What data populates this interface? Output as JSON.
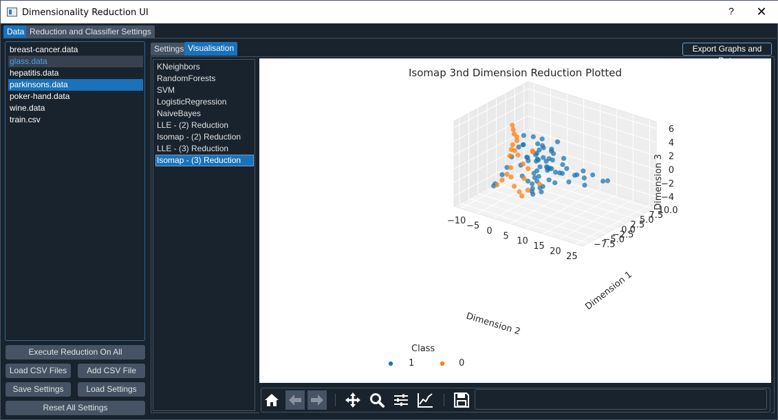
{
  "window": {
    "title": "Dimensionality Reduction UI",
    "help": "?",
    "close": "✕"
  },
  "main_tabs": [
    {
      "label": "Data",
      "active": true
    },
    {
      "label": "Reduction and Classifier Settings",
      "active": false
    }
  ],
  "files": [
    {
      "label": "breast-cancer.data",
      "state": "normal"
    },
    {
      "label": "glass.data",
      "state": "hover"
    },
    {
      "label": "hepatitis.data",
      "state": "normal"
    },
    {
      "label": "parkinsons.data",
      "state": "selected"
    },
    {
      "label": "poker-hand.data",
      "state": "normal"
    },
    {
      "label": "wine.data",
      "state": "normal"
    },
    {
      "label": "train.csv",
      "state": "normal"
    }
  ],
  "buttons": {
    "execute": "Execute Reduction On All",
    "load_csv": "Load CSV Files",
    "add_csv": "Add CSV File",
    "save_settings": "Save Settings",
    "load_settings": "Load Settings",
    "reset": "Reset All Settings"
  },
  "inner_tabs": [
    {
      "label": "Settings",
      "active": false
    },
    {
      "label": "Visualisation",
      "active": true
    }
  ],
  "export_label": "Export Graphs and Data",
  "methods": [
    {
      "label": "KNeighbors",
      "selected": false
    },
    {
      "label": "RandomForests",
      "selected": false
    },
    {
      "label": "SVM",
      "selected": false
    },
    {
      "label": "LogisticRegression",
      "selected": false
    },
    {
      "label": "NaiveBayes",
      "selected": false
    },
    {
      "label": "LLE - (2) Reduction",
      "selected": false
    },
    {
      "label": "Isomap - (2) Reduction",
      "selected": false
    },
    {
      "label": "LLE - (3) Reduction",
      "selected": false
    },
    {
      "label": "Isomap - (3) Reduction",
      "selected": true
    }
  ],
  "toolbar": {
    "icons": [
      "home-icon",
      "back-arrow-icon",
      "forward-arrow-icon",
      "pan-icon",
      "zoom-icon",
      "subplots-icon",
      "axes-edit-icon",
      "save-icon"
    ]
  },
  "chart_data": {
    "type": "scatter",
    "projection": "3d",
    "title": "Isomap 3nd Dimension Reduction Plotted",
    "xlabel": "Dimension 2",
    "ylabel": "Dimension 1",
    "zlabel": "Dimension 3",
    "x_ticks": [
      "−10",
      "−5",
      "0",
      "5",
      "10",
      "15",
      "20",
      "25"
    ],
    "y_ticks": [
      "−7.5",
      "−5.0",
      "−2.5",
      "0.0",
      "2.5",
      "5.0",
      "7.5",
      "10.0"
    ],
    "z_ticks": [
      "6",
      "4",
      "2",
      "0",
      "−2",
      "−4"
    ],
    "x_range": [
      -12,
      27
    ],
    "y_range": [
      -9,
      11
    ],
    "z_range": [
      -5.5,
      7
    ],
    "legend": {
      "title": "Class",
      "placement": "bottom-left",
      "entries": [
        {
          "name": "1",
          "color": "#1f77b4"
        },
        {
          "name": "0",
          "color": "#ff7f0e"
        }
      ]
    },
    "series": [
      {
        "name": "1",
        "color": "#1f77b4",
        "points": [
          [
            2,
            1,
            1.5
          ],
          [
            3,
            0.5,
            0.8
          ],
          [
            1,
            2,
            0.2
          ],
          [
            4,
            -1,
            1.2
          ],
          [
            5,
            1.5,
            -0.5
          ],
          [
            0,
            0,
            0.9
          ],
          [
            2.5,
            -2,
            1.8
          ],
          [
            6,
            0,
            0.4
          ],
          [
            3.5,
            2.5,
            -1.2
          ],
          [
            1.5,
            -1,
            -2.1
          ],
          [
            7,
            1,
            2.2
          ],
          [
            8,
            -1.5,
            1.0
          ],
          [
            4.5,
            3,
            0.3
          ],
          [
            2,
            -3,
            -0.7
          ],
          [
            9,
            2,
            1.5
          ],
          [
            10,
            0,
            0.1
          ],
          [
            5.5,
            -2.5,
            2.8
          ],
          [
            0.5,
            1.5,
            -1.8
          ],
          [
            3,
            4,
            1.1
          ],
          [
            6.5,
            2,
            -0.9
          ],
          [
            11,
            1,
            0.6
          ],
          [
            12,
            -1,
            1.9
          ],
          [
            14,
            0.5,
            0.2
          ],
          [
            16,
            1,
            1.0
          ],
          [
            18,
            -0.5,
            0.7
          ],
          [
            20,
            0,
            1.3
          ],
          [
            22,
            1,
            0.4
          ],
          [
            24,
            0.5,
            0.9
          ],
          [
            13,
            2,
            -0.3
          ],
          [
            15,
            -2,
            0.1
          ],
          [
            17,
            0.5,
            -0.8
          ],
          [
            4,
            0,
            -3.0
          ],
          [
            2,
            1,
            -2.6
          ],
          [
            3,
            -1,
            -3.8
          ],
          [
            1,
            0.5,
            -4.1
          ],
          [
            5,
            -0.5,
            -3.3
          ],
          [
            -2,
            1,
            3.5
          ],
          [
            -1,
            0,
            2.6
          ],
          [
            0,
            -1,
            3.0
          ],
          [
            -3,
            0.5,
            1.8
          ],
          [
            -4,
            -0.5,
            0.5
          ],
          [
            -6,
            0,
            -1.5
          ],
          [
            -8,
            0.5,
            -3.0
          ],
          [
            -9,
            -0.5,
            -4.2
          ],
          [
            -10,
            0,
            -4.8
          ],
          [
            6,
            3,
            3.2
          ],
          [
            7,
            -3,
            0.0
          ],
          [
            8,
            2.5,
            -1.0
          ],
          [
            2,
            0,
            4.2
          ],
          [
            4,
            1,
            2.6
          ],
          [
            5,
            0,
            1.6
          ],
          [
            3,
            -0.5,
            -1.5
          ],
          [
            1,
            2.5,
            1.4
          ],
          [
            2,
            3.5,
            -0.4
          ],
          [
            6,
            -1,
            -2.2
          ],
          [
            8,
            0.5,
            -1.8
          ],
          [
            9,
            -2,
            -0.5
          ],
          [
            1,
            -2.5,
            0.6
          ],
          [
            0,
            3,
            2.0
          ],
          [
            3,
            1.5,
            3.6
          ],
          [
            5,
            -3,
            -1.4
          ],
          [
            7,
            0.5,
            3.0
          ],
          [
            4,
            -2,
            -2.5
          ],
          [
            2.5,
            2,
            2.4
          ],
          [
            3.8,
            0.2,
            0.0
          ],
          [
            1.8,
            -1.2,
            1.0
          ],
          [
            6.2,
            1.2,
            -0.2
          ],
          [
            7.8,
            -0.8,
            0.7
          ],
          [
            2.2,
            0.8,
            -1.0
          ],
          [
            4.8,
            1.8,
            0.9
          ]
        ]
      },
      {
        "name": "0",
        "color": "#ff7f0e",
        "points": [
          [
            -1,
            -3,
            6.3
          ],
          [
            -0.5,
            -3.2,
            5.8
          ],
          [
            0,
            -3.4,
            5.3
          ],
          [
            0.3,
            -3.0,
            4.8
          ],
          [
            0.5,
            -3.1,
            4.3
          ],
          [
            -2,
            -2,
            3.0
          ],
          [
            -3,
            -1.5,
            2.0
          ],
          [
            -4,
            -1,
            0.8
          ],
          [
            -3.5,
            -1.2,
            -0.8
          ],
          [
            -2.5,
            -2,
            -1.8
          ],
          [
            -1,
            -2.5,
            -2.8
          ],
          [
            0,
            -2,
            -3.6
          ],
          [
            1,
            -2.2,
            -4.0
          ],
          [
            2,
            -1.5,
            -3.2
          ],
          [
            -6,
            0,
            -2.5
          ],
          [
            -8,
            0.5,
            -3.8
          ],
          [
            -9,
            0,
            -4.5
          ],
          [
            3,
            -1,
            2.4
          ],
          [
            4,
            -2,
            3.0
          ],
          [
            1,
            -0.5,
            -0.5
          ],
          [
            0,
            -1,
            0.2
          ],
          [
            -1,
            -1.5,
            1.5
          ],
          [
            2,
            -2.5,
            -1.2
          ],
          [
            5,
            -1,
            -2.0
          ],
          [
            -0.5,
            -2.8,
            2.6
          ]
        ]
      }
    ]
  }
}
